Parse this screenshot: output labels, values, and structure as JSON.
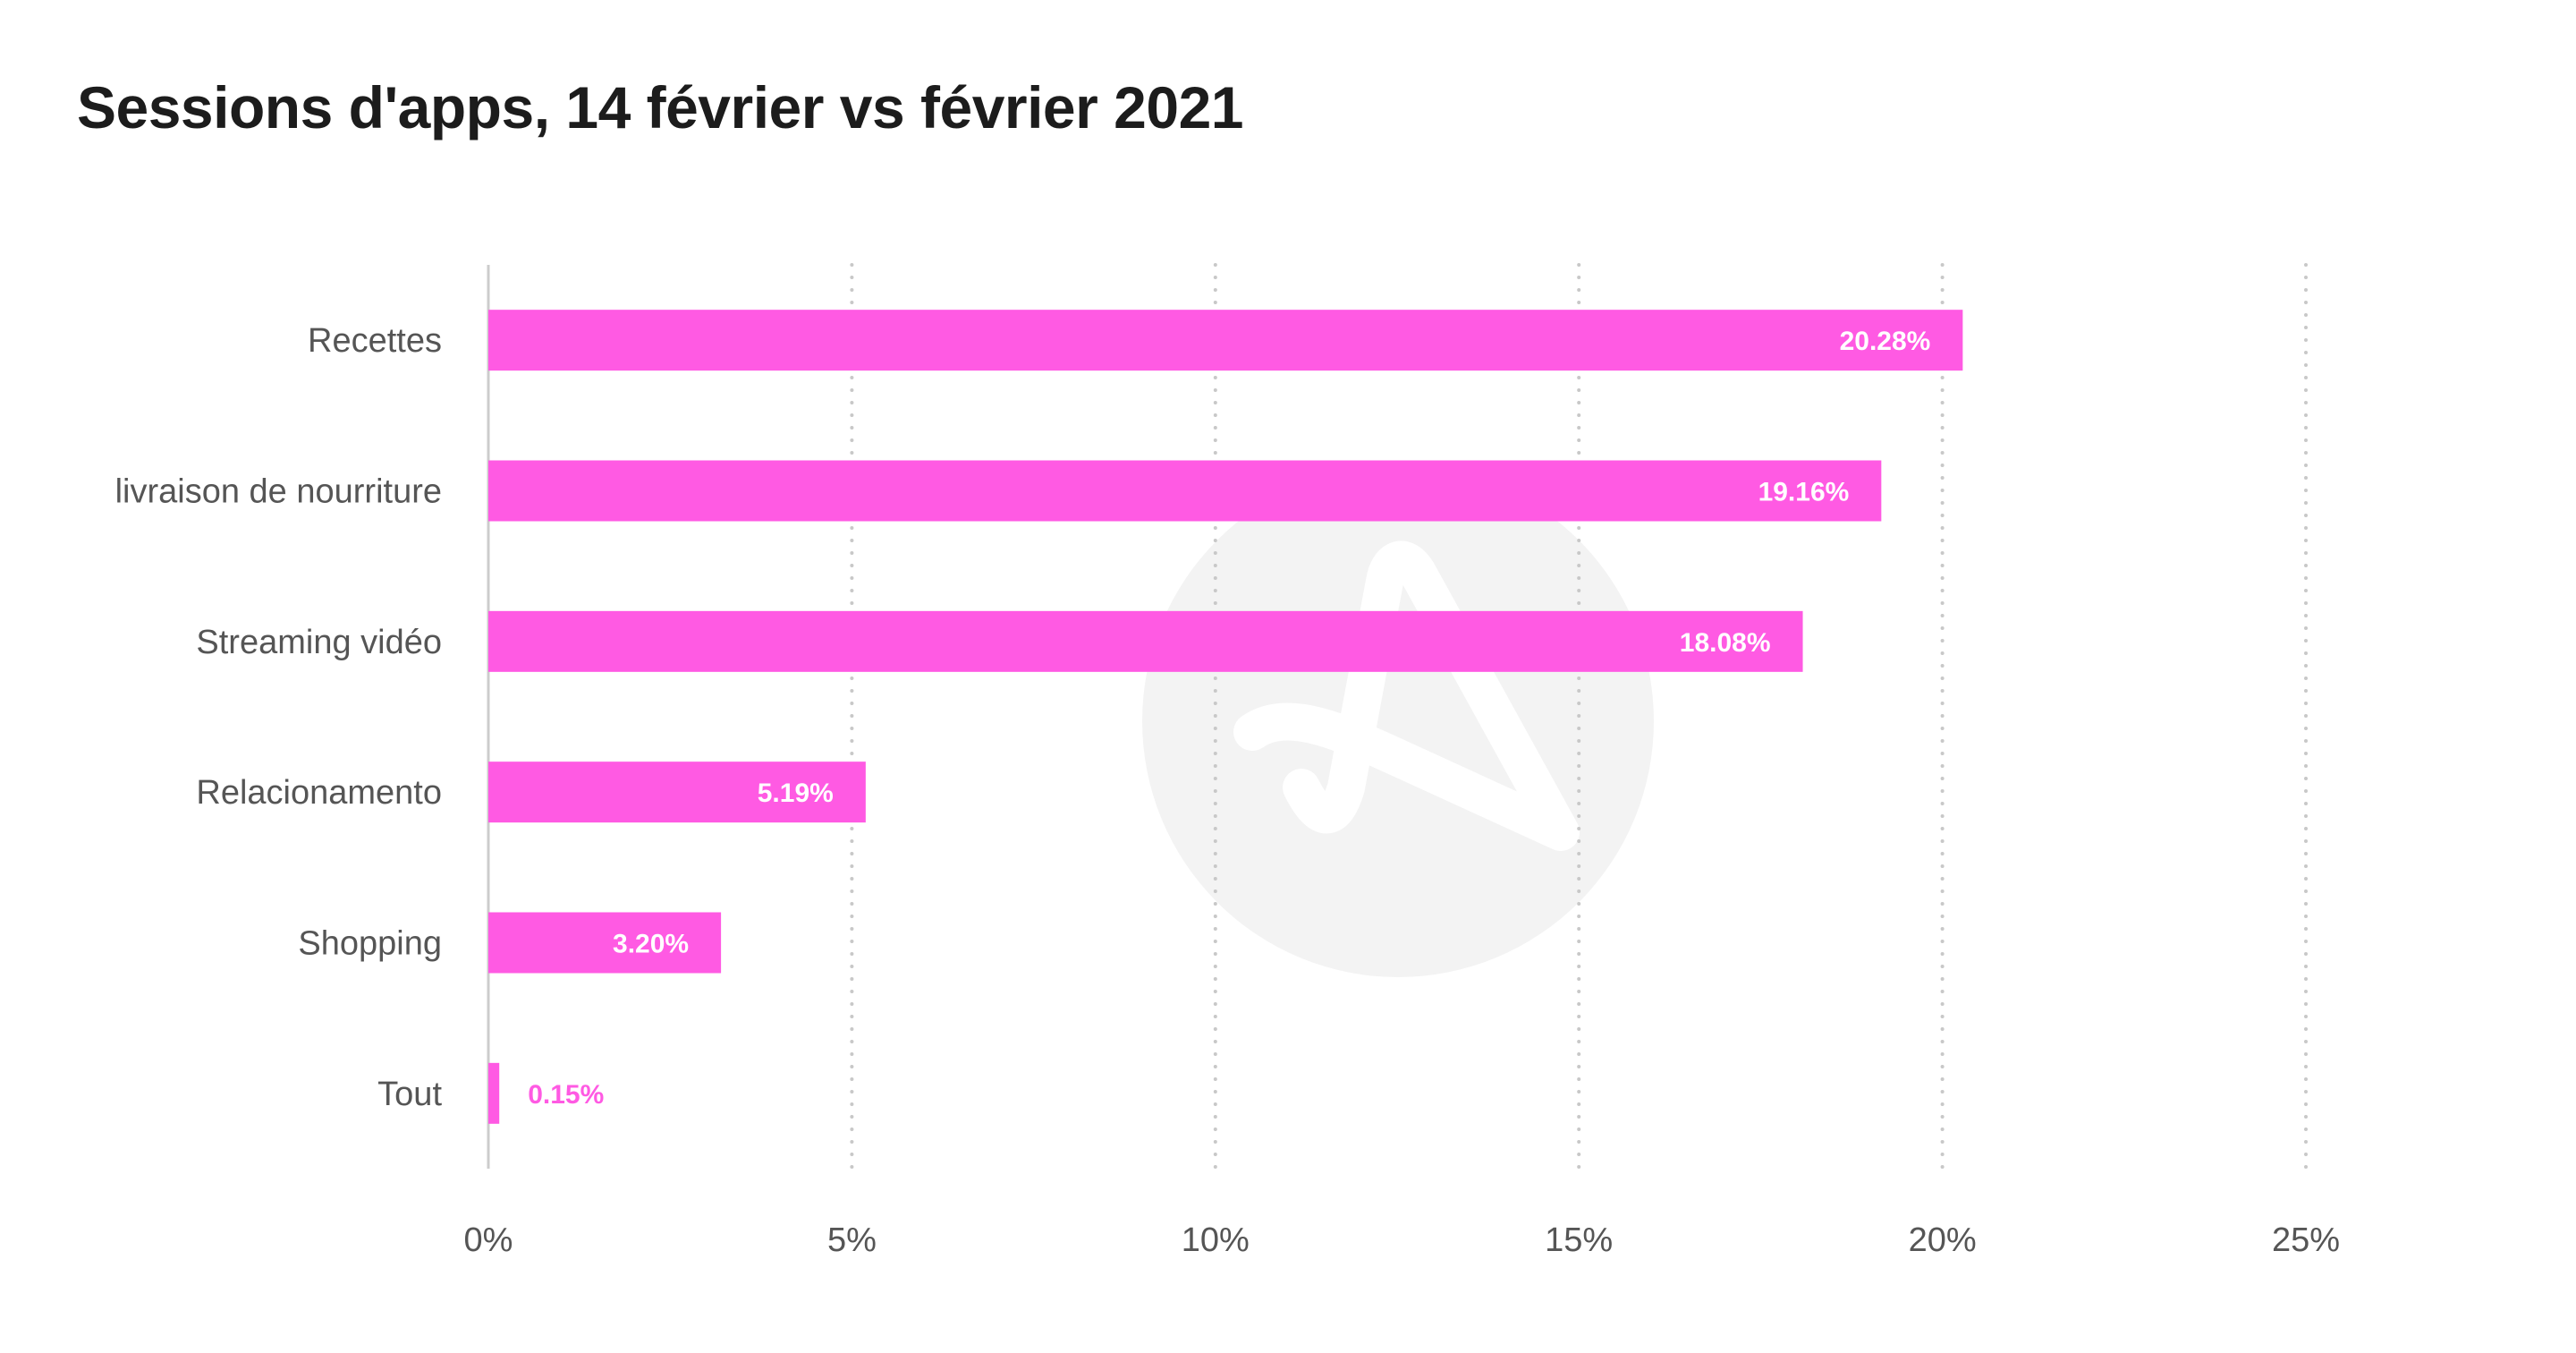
{
  "chart_data": {
    "type": "bar",
    "orientation": "horizontal",
    "title": "Sessions d'apps, 14 février vs février 2021",
    "xlabel": "",
    "ylabel": "",
    "categories": [
      "Recettes",
      "livraison de nourriture",
      "Streaming vidéo",
      "Relacionamento",
      "Shopping",
      "Tout"
    ],
    "values": [
      20.28,
      19.16,
      18.08,
      5.19,
      3.2,
      0.15
    ],
    "value_labels": [
      "20.28%",
      "19.16%",
      "18.08%",
      "5.19%",
      "3.20%",
      "0.15%"
    ],
    "xlim": [
      0,
      25
    ],
    "x_ticks": [
      0,
      5,
      10,
      15,
      20,
      25
    ],
    "x_tick_labels": [
      "0%",
      "5%",
      "10%",
      "15%",
      "20%",
      "25%"
    ],
    "grid": "vertical dotted",
    "legend": "none",
    "colors": {
      "bar": "#ff5ae3",
      "value_label_inside": "#ffffff",
      "value_label_outside": "#ff5ae3",
      "gridline": "#c8c8c8",
      "axis": "#cccccc",
      "watermark": "#f3f3f3"
    }
  }
}
